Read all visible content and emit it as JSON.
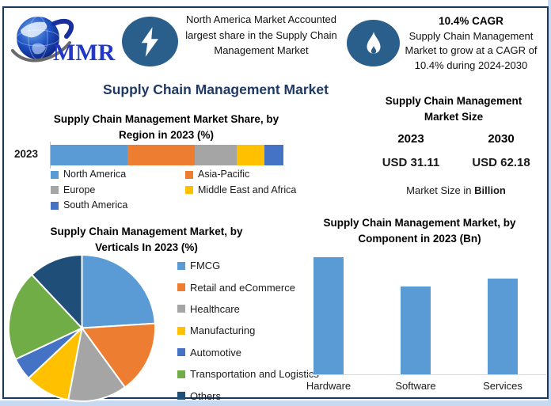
{
  "header": {
    "logo_text": "MMR",
    "logo_icon": "globe",
    "highlight_left": {
      "icon": "lightning-bolt",
      "text": "North America Market Accounted largest share in the Supply Chain Management Market"
    },
    "highlight_right": {
      "icon": "flame",
      "heading": "10.4% CAGR",
      "text": "Supply Chain Management Market to grow at a CAGR of 10.4% during 2024-2030"
    }
  },
  "page_title": "Supply Chain Management Market",
  "market_size_panel": {
    "title": "Supply Chain Management Market Size",
    "years": [
      "2023",
      "2030"
    ],
    "values": [
      "USD 31.11",
      "USD 62.18"
    ],
    "caption_text": "Market Size in ",
    "caption_bold": "Billion",
    "value_color": "#1F7391"
  },
  "colors": {
    "badge_circle": "#2B5F8B",
    "title_navy": "#1F3864",
    "frame_border": "#17375E",
    "outer_strip": "#C6D9F1"
  },
  "chart_data": [
    {
      "type": "bar",
      "orientation": "horizontal-stacked",
      "title": "Supply Chain Management Market Share, by Region in 2023 (%)",
      "categories": [
        "2023"
      ],
      "series": [
        {
          "name": "North America",
          "values": [
            33
          ],
          "color": "#5B9BD5"
        },
        {
          "name": "Asia-Pacific",
          "values": [
            29
          ],
          "color": "#ED7D31"
        },
        {
          "name": "Europe",
          "values": [
            18
          ],
          "color": "#A5A5A5"
        },
        {
          "name": "Middle East and Africa",
          "values": [
            12
          ],
          "color": "#FFC000"
        },
        {
          "name": "South America",
          "values": [
            8
          ],
          "color": "#4472C4"
        }
      ],
      "xlim": [
        0,
        100
      ],
      "legend_position": "bottom",
      "grid": false
    },
    {
      "type": "pie",
      "title": "Supply Chain Management Market, by Verticals In 2023 (%)",
      "labels": [
        "FMCG",
        "Retail and eCommerce",
        "Healthcare",
        "Manufacturing",
        "Automotive",
        "Transportation and Logistics",
        "Others"
      ],
      "values": [
        24,
        16,
        13,
        10,
        5,
        20,
        12
      ],
      "colors": [
        "#5B9BD5",
        "#ED7D31",
        "#A5A5A5",
        "#FFC000",
        "#4472C4",
        "#70AD47",
        "#1F4E79"
      ],
      "legend_position": "right",
      "start_angle_deg": 0
    },
    {
      "type": "bar",
      "orientation": "vertical",
      "title": "Supply Chain Management Market, by Component in 2023 (Bn)",
      "categories": [
        "Hardware",
        "Software",
        "Services"
      ],
      "values": [
        12.2,
        9.1,
        10.0
      ],
      "ylim": [
        0,
        14
      ],
      "color": "#5B9BD5",
      "grid": false
    }
  ]
}
